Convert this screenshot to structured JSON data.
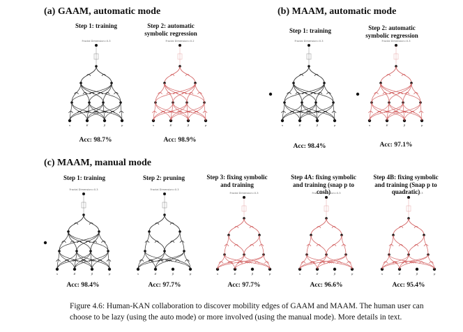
{
  "sections": {
    "a_title": "(a) GAAM, automatic mode",
    "b_title": "(b) MAAM, automatic mode",
    "c_title": "(c) MAAM, manual mode"
  },
  "panels": [
    {
      "id": "a1",
      "step": "Step 1: training",
      "acc": "Acc: 98.7%",
      "header": "Fractal Dimension=0.3",
      "color": "#222222"
    },
    {
      "id": "a2",
      "step": "Step 2: automatic symbolic regression",
      "acc": "Acc: 98.9%",
      "header": "Fractal Dimension=0.2",
      "color": "#d05a5a"
    },
    {
      "id": "b1",
      "step": "Step 1: training",
      "acc": "Acc: 98.4%",
      "header": "Fractal Dimension=0.3",
      "color": "#222222"
    },
    {
      "id": "b2",
      "step": "Step 2: automatic symbolic regression",
      "acc": "Acc: 97.1%",
      "header": "Fractal Dimension=0.3",
      "color": "#d05a5a"
    },
    {
      "id": "c1",
      "step": "Step 1: training",
      "acc": "Acc: 98.4%",
      "header": "Fractal Dimension=0.3",
      "color": "#222222"
    },
    {
      "id": "c2",
      "step": "Step 2: pruning",
      "acc": "Acc: 97.7%",
      "header": "Fractal Dimension=0.3",
      "color": "#222222"
    },
    {
      "id": "c3",
      "step": "Step 3: fixing symbolic and training",
      "acc": "Acc: 97.7%",
      "header": "Fractal Dimension=0.3",
      "color": "#d05a5a"
    },
    {
      "id": "c4",
      "step": "Step 4A: fixing symbolic and training (snap p to cosh)",
      "acc": "Acc: 96.6%",
      "header": "Fractal Dimension=0.3",
      "color": "#d05a5a"
    },
    {
      "id": "c5",
      "step": "Step 4B: fixing symbolic and training (Snap p to quadratic)",
      "acc": "Acc: 95.4%",
      "header": "Fractal Dimension=0.3",
      "color": "#d05a5a"
    }
  ],
  "caption": "Figure 4.6: Human-KAN collaboration to discover mobility edges of GAAM and MAAM. The human user can choose to be lazy (using the auto mode) or more involved (using the manual mode). More details in text."
}
